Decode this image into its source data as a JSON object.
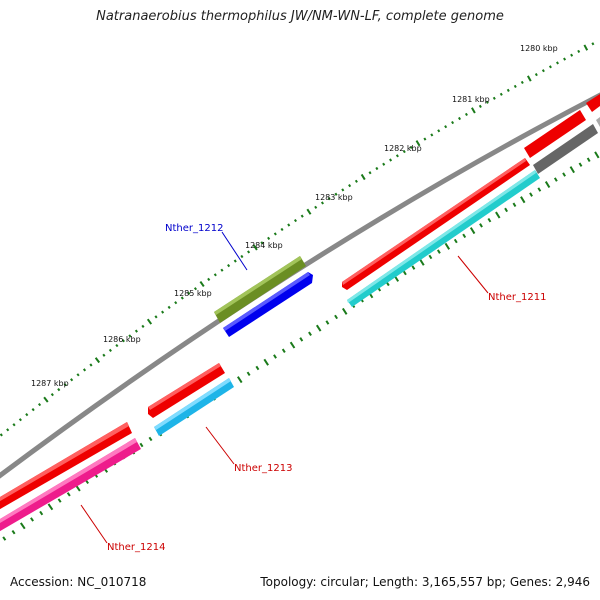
{
  "title": "Natranaerobius thermophilus JW/NM-WN-LF, complete genome",
  "footer": {
    "accession": "Accession: NC_010718",
    "topology": "Topology: circular; Length: 3,165,557 bp; Genes: 2,946"
  },
  "kbp_ticks": [
    {
      "label": "1280 kbp"
    },
    {
      "label": "1281 kbp"
    },
    {
      "label": "1282 kbp"
    },
    {
      "label": "1283 kbp"
    },
    {
      "label": "1284 kbp"
    },
    {
      "label": "1285 kbp"
    },
    {
      "label": "1286 kbp"
    },
    {
      "label": "1287 kbp"
    }
  ],
  "gene_labels": [
    {
      "text": "Nther_1212",
      "color": "#0000cc"
    },
    {
      "text": "Nther_1211",
      "color": "#cc0000"
    },
    {
      "text": "Nther_1213",
      "color": "#cc0000"
    },
    {
      "text": "Nther_1214",
      "color": "#cc0000"
    }
  ],
  "colors": {
    "backbone": "#888888",
    "cds_red": "#ee0000",
    "cds_cyan": "#22cccc",
    "cds_blue": "#0000ee",
    "cds_olive": "#6b8e23",
    "cds_pink": "#ee1c8c",
    "cds_gray": "#666666",
    "gc_dots": "#1a7a1a"
  }
}
